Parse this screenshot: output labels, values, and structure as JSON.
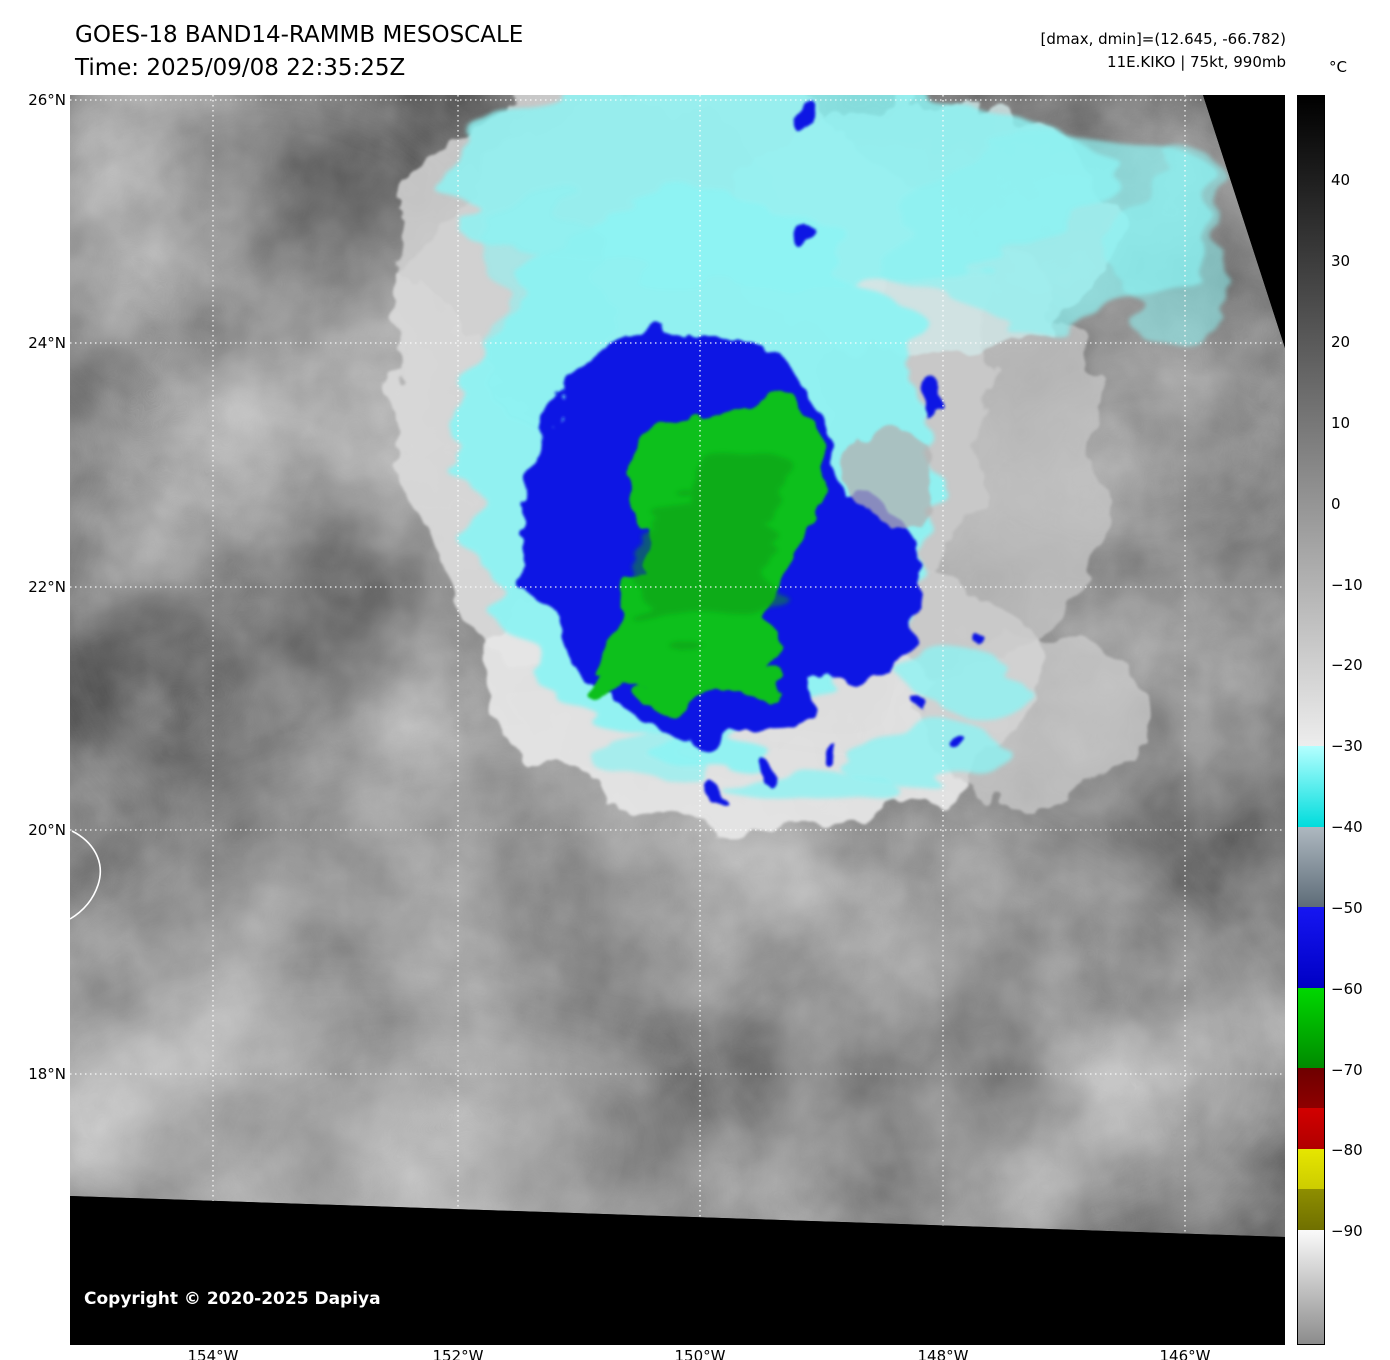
{
  "header": {
    "title": "GOES-18 BAND14-RAMMB MESOSCALE",
    "time": "Time: 2025/09/08 22:35:25Z",
    "stats": "[dmax, dmin]=(12.645, -66.782)",
    "storm": "11E.KIKO | 75kt, 990mb"
  },
  "axes": {
    "lat": [
      "26°N",
      "24°N",
      "22°N",
      "20°N",
      "18°N"
    ],
    "lon": [
      "154°W",
      "152°W",
      "150°W",
      "148°W",
      "146°W"
    ]
  },
  "colorbar": {
    "unit": "°C",
    "ticks": [
      "40",
      "30",
      "20",
      "10",
      "0",
      "−10",
      "−20",
      "−30",
      "−40",
      "−50",
      "−60",
      "−70",
      "−80",
      "−90"
    ],
    "segments": [
      {
        "pct": 52.1,
        "from": "#000000",
        "to": "#ededed"
      },
      {
        "pct": 6.5,
        "from": "#b4ffff",
        "to": "#00dcdc"
      },
      {
        "pct": 6.4,
        "from": "#aeb8c0",
        "to": "#5e6c78"
      },
      {
        "pct": 6.5,
        "from": "#1616f2",
        "to": "#0000c4"
      },
      {
        "pct": 6.4,
        "from": "#00d800",
        "to": "#008a00"
      },
      {
        "pct": 3.2,
        "from": "#6e0000",
        "to": "#8e0000"
      },
      {
        "pct": 3.3,
        "from": "#d20000",
        "to": "#b00000"
      },
      {
        "pct": 3.2,
        "from": "#e6e600",
        "to": "#cccc00"
      },
      {
        "pct": 3.3,
        "from": "#8e8e00",
        "to": "#707000"
      },
      {
        "pct": 9.1,
        "from": "#fafafa",
        "to": "#8c8c8c"
      }
    ]
  },
  "map": {
    "copyright": "Copyright © 2020-2025 Dapiya"
  },
  "palette": {
    "cold_cyan": "#8df2f2",
    "cold_blue": "#0714e4",
    "cold_green": "#0cc01c",
    "cloud_white": "#e6e6e6",
    "background_black": "#000000"
  }
}
